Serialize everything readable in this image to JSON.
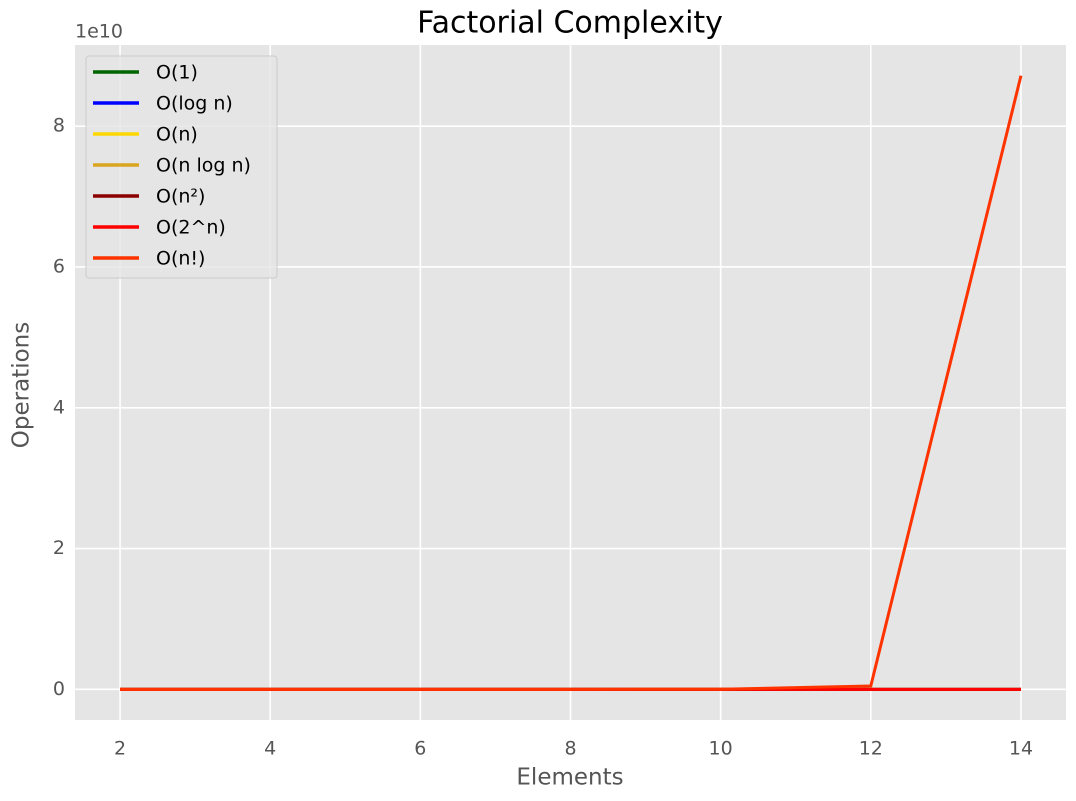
{
  "chart_data": {
    "type": "line",
    "title": "Factorial Complexity",
    "x_label": "Elements",
    "y_label": "Operations",
    "y_offset_label": "1e10",
    "x": [
      2,
      4,
      6,
      8,
      10,
      12,
      14
    ],
    "series": [
      {
        "name": "O(1)",
        "color": "#006400",
        "values": [
          1,
          1,
          1,
          1,
          1,
          1,
          1
        ]
      },
      {
        "name": "O(log n)",
        "color": "#0000ff",
        "values": [
          1,
          2,
          2.585,
          3,
          3.322,
          3.585,
          3.807
        ]
      },
      {
        "name": "O(n)",
        "color": "#ffd700",
        "values": [
          2,
          4,
          6,
          8,
          10,
          12,
          14
        ]
      },
      {
        "name": "O(n log n)",
        "color": "#daa520",
        "values": [
          2,
          8,
          15.51,
          24,
          33.22,
          43.02,
          53.3
        ]
      },
      {
        "name": "O(n²)",
        "color": "#8b0000",
        "values": [
          4,
          16,
          36,
          64,
          100,
          144,
          196
        ]
      },
      {
        "name": "O(2^n)",
        "color": "#ff0000",
        "values": [
          4,
          16,
          64,
          256,
          1024,
          4096,
          16384
        ]
      },
      {
        "name": "O(n!)",
        "color": "#ff3300",
        "values": [
          2,
          24,
          720,
          40320,
          3628800,
          479001600,
          87178291200
        ]
      }
    ],
    "xlim": [
      1.4,
      14.6
    ],
    "xticks": [
      2,
      4,
      6,
      8,
      10,
      12,
      14
    ],
    "ylim": [
      -4358914560,
      91537205760
    ],
    "yticks": [
      {
        "value": 0,
        "label": "0"
      },
      {
        "value": 20000000000,
        "label": "2"
      },
      {
        "value": 40000000000,
        "label": "4"
      },
      {
        "value": 60000000000,
        "label": "6"
      },
      {
        "value": 80000000000,
        "label": "8"
      }
    ],
    "grid": true,
    "legend": "upper left"
  }
}
